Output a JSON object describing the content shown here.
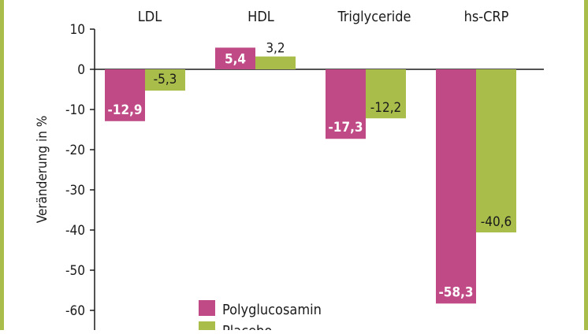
{
  "colors": {
    "frame": "#a9bd4a",
    "axis": "#1a1a1a"
  },
  "chart_data": {
    "type": "bar",
    "categories": [
      "LDL",
      "HDL",
      "Triglyceride",
      "hs-CRP"
    ],
    "series": [
      {
        "name": "Polyglucosamin",
        "color": "#bf4a86",
        "values": [
          -12.9,
          5.4,
          -17.3,
          -58.3
        ],
        "labels": [
          "-12,9",
          "5,4",
          "-17,3",
          "-58,3"
        ]
      },
      {
        "name": "Placebo",
        "color": "#a9bd4a",
        "values": [
          -5.3,
          3.2,
          -12.2,
          -40.6
        ],
        "labels": [
          "-5,3",
          "3,2",
          "-12,2",
          "-40,6"
        ]
      }
    ],
    "ylabel": "Veränderung in %",
    "ylim": [
      -60,
      10
    ],
    "yticks": [
      10,
      0,
      -10,
      -20,
      -30,
      -40,
      -50,
      -60
    ],
    "ytick_labels": [
      "10",
      "0",
      "-10",
      "-20",
      "-30",
      "-40",
      "-50",
      "-60"
    ],
    "grid": false,
    "legend": "bottom-center"
  }
}
